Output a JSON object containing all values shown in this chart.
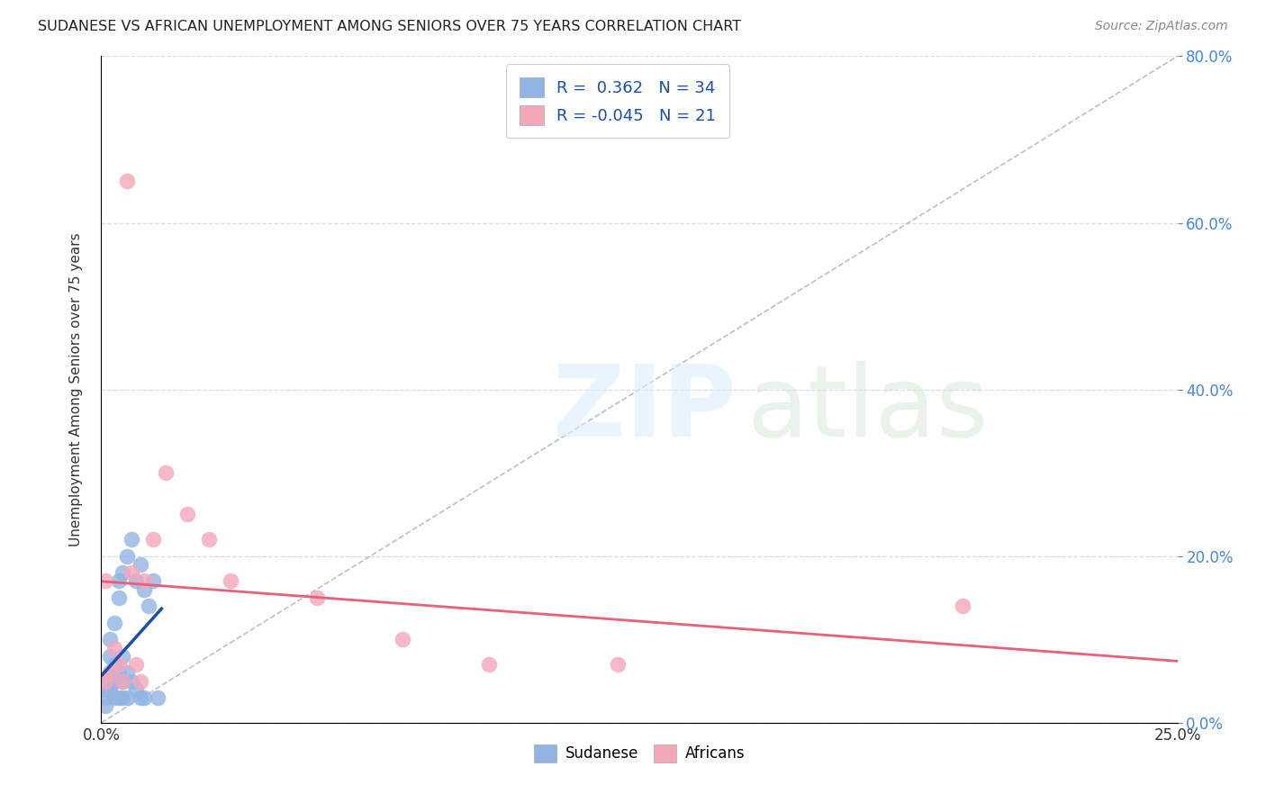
{
  "title": "SUDANESE VS AFRICAN UNEMPLOYMENT AMONG SENIORS OVER 75 YEARS CORRELATION CHART",
  "source": "Source: ZipAtlas.com",
  "ylabel": "Unemployment Among Seniors over 75 years",
  "xlim": [
    0.0,
    0.25
  ],
  "ylim": [
    0.0,
    0.8
  ],
  "xticks": [
    0.0,
    0.05,
    0.1,
    0.15,
    0.2,
    0.25
  ],
  "yticks": [
    0.0,
    0.2,
    0.4,
    0.6,
    0.8
  ],
  "sudanese_R": 0.362,
  "sudanese_N": 34,
  "africans_R": -0.045,
  "africans_N": 21,
  "sudanese_color": "#92b4e3",
  "africans_color": "#f4a7b9",
  "sudanese_line_color": "#1a4faa",
  "africans_line_color": "#e8607a",
  "ref_line_color": "#b0bbc8",
  "background_color": "#ffffff",
  "grid_color": "#d8dde8",
  "legend_label_color": "#1a4faa",
  "right_axis_color": "#4488dd",
  "sudanese_x": [
    0.001,
    0.001,
    0.001,
    0.001,
    0.002,
    0.002,
    0.002,
    0.002,
    0.003,
    0.003,
    0.003,
    0.003,
    0.004,
    0.004,
    0.004,
    0.004,
    0.005,
    0.005,
    0.005,
    0.005,
    0.006,
    0.006,
    0.006,
    0.007,
    0.007,
    0.008,
    0.008,
    0.009,
    0.009,
    0.01,
    0.01,
    0.011,
    0.012,
    0.013
  ],
  "sudanese_y": [
    0.03,
    0.05,
    0.02,
    0.04,
    0.06,
    0.08,
    0.1,
    0.04,
    0.12,
    0.07,
    0.03,
    0.05,
    0.15,
    0.17,
    0.03,
    0.06,
    0.18,
    0.05,
    0.03,
    0.08,
    0.2,
    0.06,
    0.03,
    0.22,
    0.05,
    0.17,
    0.04,
    0.19,
    0.03,
    0.16,
    0.03,
    0.14,
    0.17,
    0.03
  ],
  "africans_x": [
    0.001,
    0.001,
    0.002,
    0.003,
    0.004,
    0.005,
    0.006,
    0.007,
    0.008,
    0.009,
    0.01,
    0.012,
    0.015,
    0.02,
    0.025,
    0.03,
    0.05,
    0.07,
    0.09,
    0.12,
    0.2
  ],
  "africans_y": [
    0.17,
    0.05,
    0.06,
    0.09,
    0.07,
    0.05,
    0.65,
    0.18,
    0.07,
    0.05,
    0.17,
    0.22,
    0.3,
    0.25,
    0.22,
    0.17,
    0.15,
    0.1,
    0.07,
    0.07,
    0.14
  ]
}
